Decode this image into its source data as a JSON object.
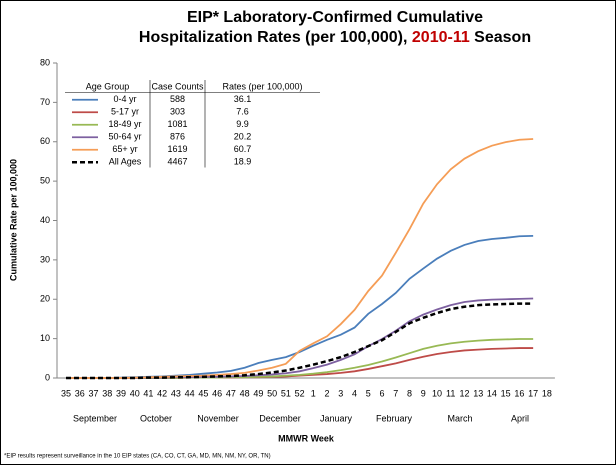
{
  "chart_data": {
    "type": "line",
    "title_parts": [
      "EIP* Laboratory-Confirmed Cumulative",
      "Hospitalization Rates (per 100,000), ",
      "2010-11",
      " Season"
    ],
    "y_label": "Cumulative Rate per 100,000",
    "x_label": "MMWR Week",
    "footnote": "*EIP results represent surveillance in the 10 EIP states (CA, CO, CT, GA, MD, MN, NM, NY, OR, TN)",
    "months": [
      "September",
      "October",
      "November",
      "December",
      "January",
      "February",
      "March",
      "April"
    ],
    "legend_headers": [
      "Age Group",
      "Case Counts",
      "Rates (per 100,000)"
    ],
    "categories": [
      35,
      36,
      37,
      38,
      39,
      40,
      41,
      42,
      43,
      44,
      45,
      46,
      47,
      48,
      49,
      50,
      51,
      52,
      1,
      2,
      3,
      4,
      5,
      6,
      7,
      8,
      9,
      10,
      11,
      12,
      13,
      14,
      15,
      16,
      17,
      18
    ],
    "ylim": [
      0,
      80
    ],
    "yticks": [
      0,
      10,
      20,
      30,
      40,
      50,
      60,
      70,
      80
    ],
    "series": [
      {
        "name": "0-4 yr",
        "color": "#4a7ebb",
        "case_count": 588,
        "rate": 36.1,
        "values": [
          0,
          0,
          0,
          0,
          0.1,
          0.2,
          0.3,
          0.4,
          0.6,
          0.8,
          1.1,
          1.4,
          1.8,
          2.6,
          3.8,
          4.6,
          5.3,
          6.6,
          8.2,
          9.7,
          11,
          12.8,
          16.3,
          18.8,
          21.6,
          25.2,
          27.8,
          30.3,
          32.3,
          33.8,
          34.8,
          35.3,
          35.6,
          36,
          36.1,
          null
        ]
      },
      {
        "name": "5-17 yr",
        "color": "#be4b48",
        "case_count": 303,
        "rate": 7.6,
        "values": [
          0,
          0,
          0,
          0,
          0,
          0,
          0,
          0,
          0,
          0.1,
          0.1,
          0.1,
          0.1,
          0.2,
          0.2,
          0.3,
          0.4,
          0.6,
          0.8,
          1,
          1.3,
          1.7,
          2.3,
          3,
          3.7,
          4.6,
          5.4,
          6.1,
          6.6,
          7,
          7.2,
          7.4,
          7.5,
          7.6,
          7.6,
          null
        ]
      },
      {
        "name": "18-49 yr",
        "color": "#98b954",
        "case_count": 1081,
        "rate": 9.9,
        "values": [
          0,
          0,
          0,
          0,
          0,
          0,
          0,
          0,
          0,
          0.1,
          0.1,
          0.1,
          0.2,
          0.2,
          0.3,
          0.4,
          0.6,
          0.8,
          1.1,
          1.5,
          2,
          2.6,
          3.3,
          4.2,
          5.2,
          6.3,
          7.4,
          8.2,
          8.8,
          9.2,
          9.5,
          9.7,
          9.8,
          9.9,
          9.9,
          null
        ]
      },
      {
        "name": "50-64 yr",
        "color": "#7d60a0",
        "case_count": 876,
        "rate": 20.2,
        "values": [
          0,
          0,
          0,
          0,
          0,
          0,
          0.1,
          0.1,
          0.2,
          0.2,
          0.3,
          0.3,
          0.4,
          0.5,
          0.7,
          0.9,
          1.2,
          1.7,
          2.5,
          3.4,
          4.6,
          6,
          8.1,
          9.9,
          12,
          14.4,
          16.1,
          17.4,
          18.5,
          19.3,
          19.7,
          19.9,
          20,
          20.1,
          20.2,
          null
        ]
      },
      {
        "name": "65+ yr",
        "color": "#f59d56",
        "case_count": 1619,
        "rate": 60.7,
        "values": [
          0,
          0,
          0,
          0,
          0,
          0.1,
          0.2,
          0.3,
          0.4,
          0.5,
          0.6,
          0.8,
          1,
          1.3,
          1.9,
          2.6,
          3.6,
          6.9,
          8.8,
          10.6,
          13.7,
          17.3,
          22.1,
          26,
          31.8,
          37.8,
          44.3,
          49.2,
          53,
          55.7,
          57.6,
          59,
          59.9,
          60.5,
          60.7,
          null
        ]
      },
      {
        "name": "All Ages",
        "color": "#000000",
        "dashed": true,
        "case_count": 4467,
        "rate": 18.9,
        "values": [
          0,
          0,
          0,
          0,
          0,
          0,
          0.1,
          0.1,
          0.2,
          0.2,
          0.3,
          0.4,
          0.5,
          0.7,
          1,
          1.4,
          1.9,
          2.6,
          3.4,
          4.3,
          5.3,
          6.6,
          8.1,
          9.6,
          11.7,
          13.9,
          15.3,
          16.5,
          17.5,
          18.1,
          18.5,
          18.7,
          18.8,
          18.9,
          18.9,
          null
        ]
      }
    ]
  }
}
